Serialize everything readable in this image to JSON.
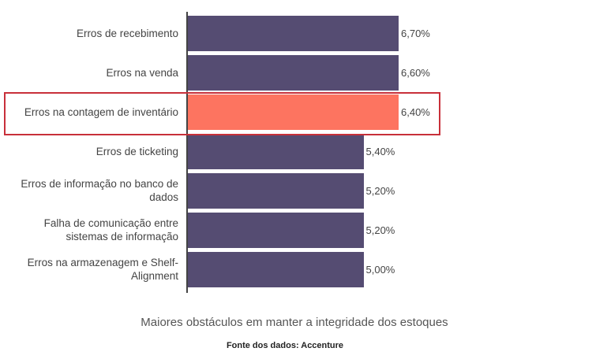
{
  "chart_data": {
    "type": "bar",
    "orientation": "horizontal",
    "title": "Maiores obstáculos em manter a integridade dos estoques",
    "source": "Fonte dos dados: Accenture",
    "categories": [
      "Erros de recebimento",
      "Erros na venda",
      "Erros na contagem de inventário",
      "Erros de ticketing",
      "Erros de informação no banco de dados",
      "Falha de comunicação entre sistemas de informação",
      "Erros na armazenagem e Shelf-Alignment"
    ],
    "values": [
      6.7,
      6.6,
      6.4,
      5.4,
      5.2,
      5.2,
      5.0
    ],
    "value_labels": [
      "6,70%",
      "6,60%",
      "6,40%",
      "5,40%",
      "5,20%",
      "5,20%",
      "5,00%"
    ],
    "highlighted_index": 2,
    "colors": {
      "bar": "#554c72",
      "highlight": "#fd7460",
      "box": "#c8303a"
    }
  }
}
